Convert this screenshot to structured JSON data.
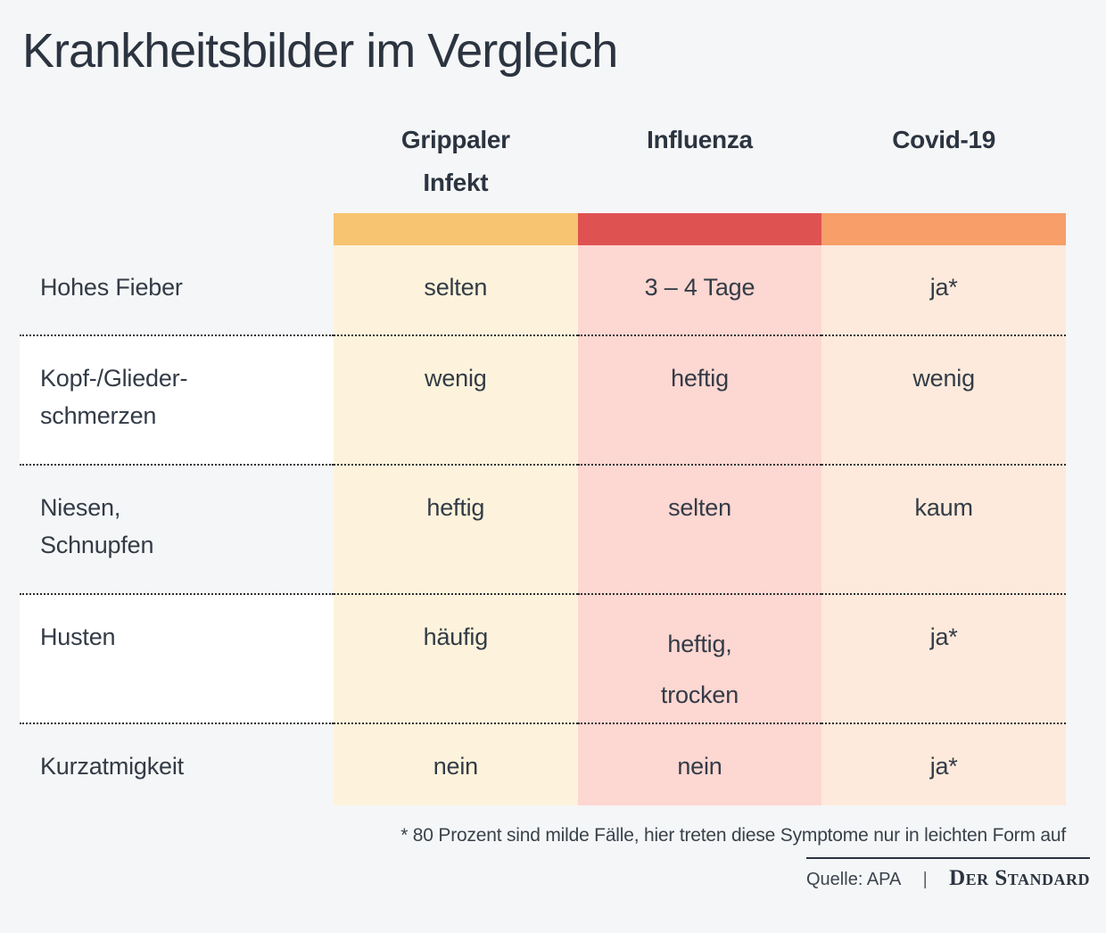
{
  "title": "Krankheitsbilder im Vergleich",
  "chart_data": {
    "type": "table",
    "title": "Krankheitsbilder im Vergleich",
    "columns": [
      {
        "label": "Grippaler\nInfekt",
        "band_color": "#f7c471",
        "tint_color": "#fdf3dc"
      },
      {
        "label": "Influenza",
        "band_color": "#de5352",
        "tint_color": "#fdd7d2"
      },
      {
        "label": "Covid-19",
        "band_color": "#f79e69",
        "tint_color": "#fdeadc"
      }
    ],
    "rows": [
      {
        "label": "Hohes Fieber",
        "values": [
          "selten",
          "3 – 4 Tage",
          "ja*"
        ]
      },
      {
        "label": "Kopf-/Glieder-\nschmerzen",
        "values": [
          "wenig",
          "heftig",
          "wenig"
        ]
      },
      {
        "label": "Niesen,\nSchnupfen",
        "values": [
          "heftig",
          "selten",
          "kaum"
        ]
      },
      {
        "label": "Husten",
        "values": [
          "häufig",
          "heftig,\ntrocken",
          "ja*"
        ]
      },
      {
        "label": "Kurzatmigkeit",
        "values": [
          "nein",
          "nein",
          "ja*"
        ]
      }
    ],
    "footnote": "* 80 Prozent sind milde Fälle, hier treten diese Symptome nur in leichten Form auf",
    "source": {
      "label": "Quelle: APA",
      "separator": "|",
      "brand": "Der Standard"
    }
  }
}
